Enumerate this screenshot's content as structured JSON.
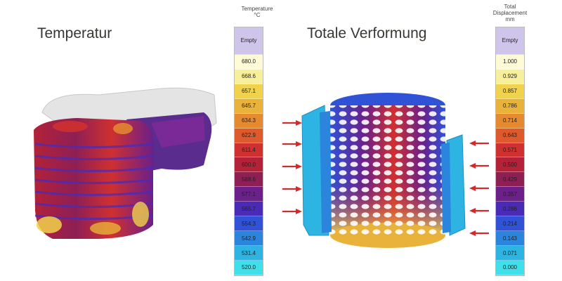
{
  "left_panel": {
    "title": "Temperatur",
    "legend_heading": [
      "Temperature",
      "°C"
    ],
    "legend_values": [
      "Empty",
      "680.0",
      "668.6",
      "657.1",
      "645.7",
      "634.3",
      "622.9",
      "611.4",
      "600.0",
      "588.6",
      "577.1",
      "565.7",
      "554.3",
      "542.9",
      "531.4",
      "520.0"
    ],
    "legend_colors": [
      "#cfc5ea",
      "#fffbd6",
      "#f8ef9a",
      "#f0d24c",
      "#e9b23a",
      "#e58a2f",
      "#de5a2c",
      "#cf3030",
      "#b32238",
      "#8e1f55",
      "#6b208a",
      "#4a2bb8",
      "#2f52d6",
      "#2b85dc",
      "#2db4e2",
      "#3fe0ea"
    ]
  },
  "right_panel": {
    "title": "Totale Verformung",
    "legend_heading": [
      "Total",
      "Displacement",
      "mm"
    ],
    "legend_values": [
      "Empty",
      "1.000",
      "0.929",
      "0.857",
      "0.786",
      "0.714",
      "0.643",
      "0.571",
      "0.500",
      "0.429",
      "0.357",
      "0.286",
      "0.214",
      "0.143",
      "0.071",
      "0.000"
    ],
    "legend_colors": [
      "#cfc5ea",
      "#fffbd6",
      "#f8ef9a",
      "#f0d24c",
      "#e9b23a",
      "#e58a2f",
      "#de5a2c",
      "#cf3030",
      "#b32238",
      "#8e1f55",
      "#6b208a",
      "#4a2bb8",
      "#2f52d6",
      "#2b85dc",
      "#2db4e2",
      "#3fe0ea"
    ],
    "arrow_color": "#d42a2a"
  }
}
